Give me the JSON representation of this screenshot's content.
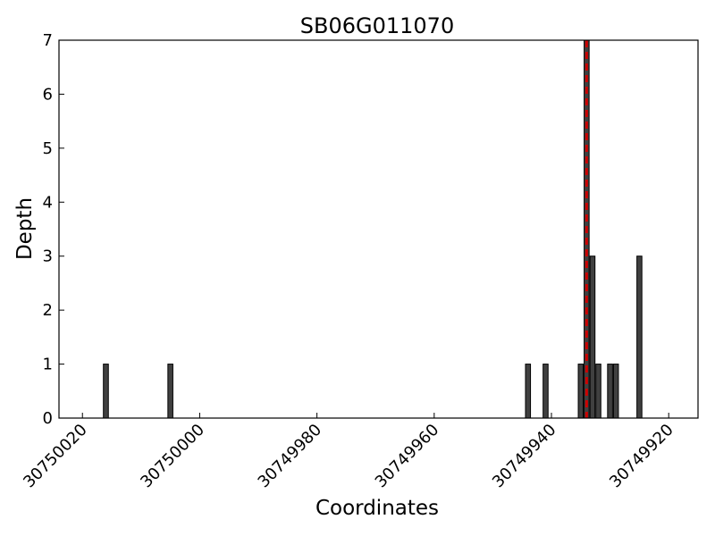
{
  "chart_data": {
    "type": "bar",
    "title": "SB06G011070",
    "xlabel": "Coordinates",
    "ylabel": "Depth",
    "x_reversed": true,
    "xlim": [
      30750024,
      30749915
    ],
    "ylim": [
      0,
      7
    ],
    "x_ticks": [
      30750020,
      30750000,
      30749980,
      30749960,
      30749940,
      30749920
    ],
    "x_tick_labels": [
      "30750020",
      "30750000",
      "30749980",
      "30749960",
      "30749940",
      "30749920"
    ],
    "y_ticks": [
      0,
      1,
      2,
      3,
      4,
      5,
      6,
      7
    ],
    "y_tick_labels": [
      "0",
      "1",
      "2",
      "3",
      "4",
      "5",
      "6",
      "7"
    ],
    "bar_color": "#404040",
    "bars": [
      {
        "x": 30750016,
        "value": 1
      },
      {
        "x": 30750005,
        "value": 1
      },
      {
        "x": 30749944,
        "value": 1
      },
      {
        "x": 30749941,
        "value": 1
      },
      {
        "x": 30749935,
        "value": 1
      },
      {
        "x": 30749934,
        "value": 7
      },
      {
        "x": 30749933,
        "value": 3
      },
      {
        "x": 30749932,
        "value": 1
      },
      {
        "x": 30749930,
        "value": 1
      },
      {
        "x": 30749929,
        "value": 1
      },
      {
        "x": 30749925,
        "value": 3
      }
    ],
    "reference_line": {
      "x": 30749934,
      "style": "dashed",
      "color": "#cc0000"
    },
    "grid": false
  }
}
